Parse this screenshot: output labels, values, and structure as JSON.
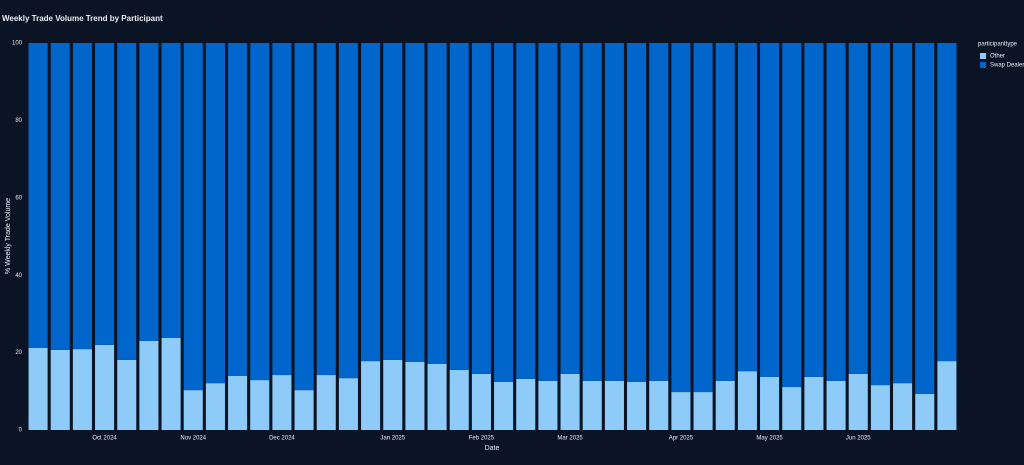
{
  "chart_data": {
    "type": "stacked-bar",
    "title": "Weekly Trade Volume Trend by Participant",
    "x_label": "Date",
    "y_label": "% Weekly Trade Volume",
    "legend_title": "participanttype",
    "legend": "top-right",
    "categories": [
      null,
      null,
      null,
      "Oct 2024",
      null,
      null,
      null,
      "Nov 2024",
      null,
      null,
      null,
      "Dec 2024",
      null,
      null,
      null,
      null,
      "Jan 2025",
      null,
      null,
      null,
      "Feb 2025",
      null,
      null,
      null,
      "Mar 2025",
      null,
      null,
      null,
      null,
      "Apr 2025",
      null,
      null,
      null,
      "May 2025",
      null,
      null,
      null,
      "Jun 2025",
      null,
      null,
      null,
      null
    ],
    "series": [
      {
        "name": "Other",
        "color": "#8ecbf9",
        "values": [
          21.2,
          20.7,
          20.9,
          22.0,
          18.1,
          23.0,
          23.8,
          10.3,
          12.1,
          14.0,
          12.9,
          14.2,
          10.3,
          14.2,
          13.4,
          17.8,
          18.1,
          17.6,
          17.1,
          15.5,
          14.5,
          12.4,
          13.2,
          12.7,
          14.5,
          12.7,
          12.7,
          12.4,
          12.7,
          9.8,
          9.8,
          12.7,
          15.2,
          13.7,
          11.1,
          13.7,
          12.7,
          14.5,
          11.6,
          12.1,
          9.3,
          17.8
        ]
      },
      {
        "name": "Swap Dealer",
        "color": "#0066cc",
        "values": [
          78.8,
          79.3,
          79.1,
          78.0,
          81.9,
          77.0,
          76.2,
          89.7,
          87.9,
          86.0,
          87.1,
          85.8,
          89.7,
          85.8,
          86.6,
          82.2,
          81.9,
          82.4,
          82.9,
          84.5,
          85.5,
          87.6,
          86.8,
          87.3,
          85.5,
          87.3,
          87.3,
          87.6,
          87.3,
          90.2,
          90.2,
          87.3,
          84.8,
          86.3,
          88.9,
          86.3,
          87.3,
          85.5,
          88.4,
          87.9,
          90.7,
          82.2
        ]
      }
    ],
    "ylim": [
      0,
      100
    ],
    "yticks": [
      0,
      20,
      40,
      60,
      80,
      100
    ],
    "grid": false
  }
}
